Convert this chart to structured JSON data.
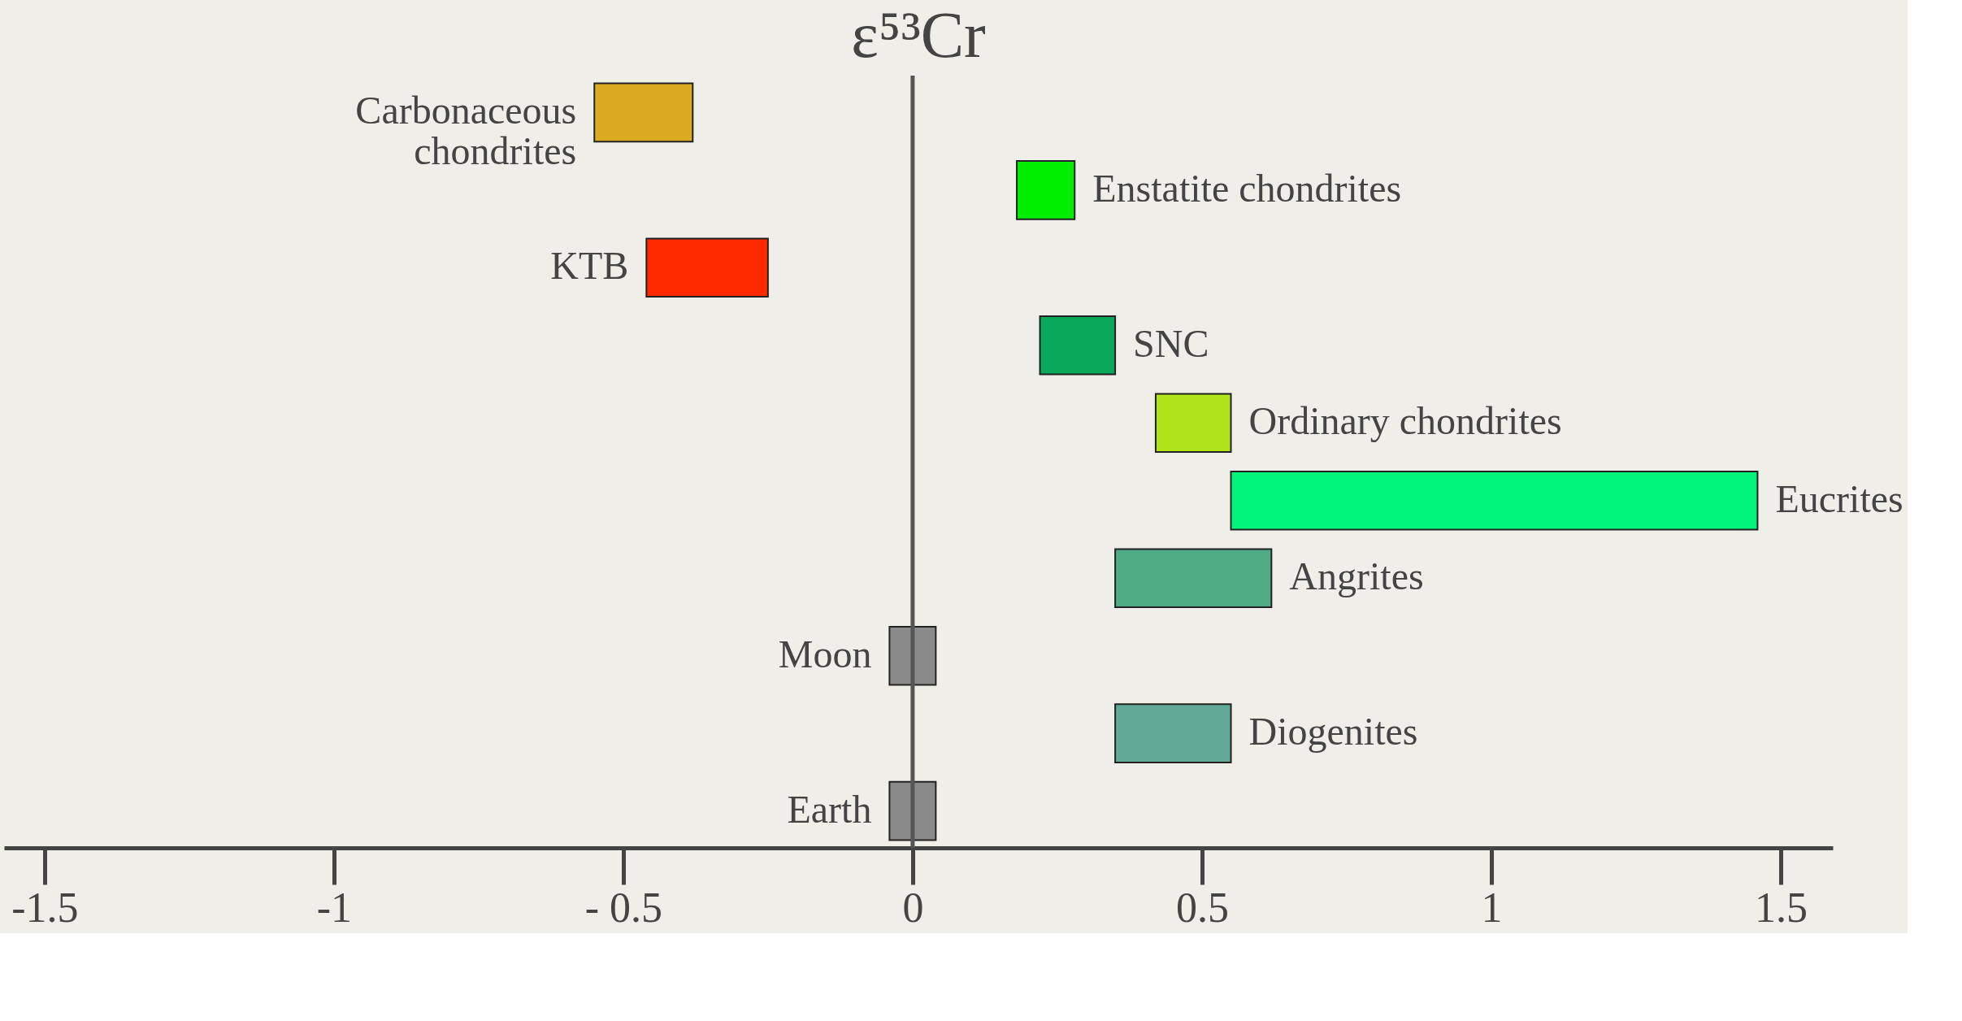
{
  "chart_data": {
    "type": "bar",
    "orientation": "horizontal",
    "title": "ε⁵³Cr",
    "categories": [
      "Carbonaceous\nchondrites",
      "Enstatite chondrites",
      "KTB",
      "SNC",
      "Ordinary chondrites",
      "Eucrites",
      "Angrites",
      "Moon",
      "Diogenites",
      "Earth"
    ],
    "base": [
      -0.55,
      0.18,
      -0.46,
      0.22,
      0.42,
      0.55,
      0.35,
      -0.04,
      0.35,
      -0.04
    ],
    "values": [
      0.17,
      0.1,
      0.21,
      0.13,
      0.13,
      0.91,
      0.27,
      0.08,
      0.2,
      0.08
    ],
    "colors": [
      "#dcaa22",
      "#00ee00",
      "#ff2a00",
      "#0aa85a",
      "#b0e31a",
      "#00f57a",
      "#4fac84",
      "#8a8a8a",
      "#62aa98",
      "#8a8a8a"
    ],
    "xlim": [
      -1.57,
      1.59
    ],
    "xticks": [
      {
        "value": -1.5,
        "label": "-1.5"
      },
      {
        "value": -1,
        "label": "-1"
      },
      {
        "value": -0.5,
        "label": "- 0.5"
      },
      0,
      0.5,
      1,
      1.5
    ],
    "ref_lines": [
      {
        "axis": "x",
        "value": 0,
        "color": "#555555"
      }
    ],
    "grid": false
  }
}
